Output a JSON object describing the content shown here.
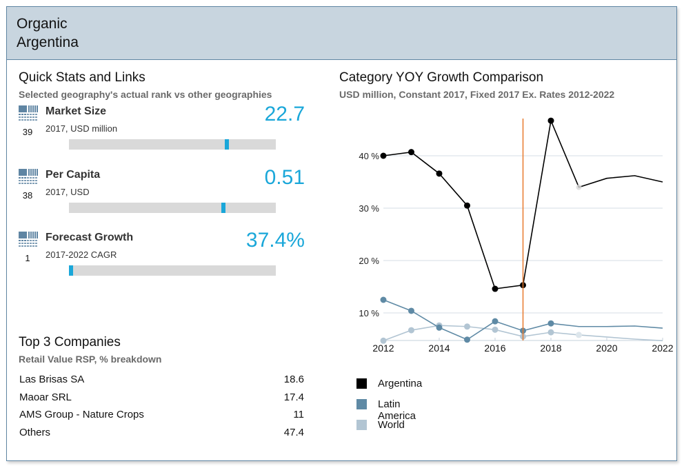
{
  "header": {
    "title_line1": "Organic",
    "title_line2": "Argentina"
  },
  "quick_stats": {
    "title": "Quick Stats and Links",
    "subtitle": "Selected geography's actual rank vs other geographies",
    "items": [
      {
        "label": "Market Size",
        "sub": "2017, USD million",
        "value": "22.7",
        "rank": "39",
        "rank_icon": "grid-rank-icon",
        "bar_position": 0.77
      },
      {
        "label": "Per Capita",
        "sub": "2017, USD",
        "value": "0.51",
        "rank": "38",
        "rank_icon": "grid-rank-icon",
        "bar_position": 0.75
      },
      {
        "label": "Forecast Growth",
        "sub": "2017-2022 CAGR",
        "value": "37.4%",
        "rank": "1",
        "rank_icon": "grid-rank-icon",
        "bar_position": 0.0
      }
    ],
    "accent_color": "#1aa7d9"
  },
  "top_companies": {
    "title": "Top 3 Companies",
    "subtitle": "Retail Value RSP, % breakdown",
    "rows": [
      {
        "name": "Las Brisas SA",
        "value": "18.6"
      },
      {
        "name": "Maoar SRL",
        "value": "17.4"
      },
      {
        "name": "AMS Group - Nature Crops",
        "value": "11"
      },
      {
        "name": "Others",
        "value": "47.4"
      }
    ]
  },
  "chart_data": {
    "type": "line",
    "title": "Category YOY Growth Comparison",
    "subtitle": "USD million, Constant 2017, Fixed 2017 Ex. Rates 2012-2022",
    "xlabel": "",
    "ylabel": "",
    "x": [
      2012,
      2013,
      2014,
      2015,
      2016,
      2017,
      2018,
      2019,
      2020,
      2021,
      2022
    ],
    "x_ticks": [
      "2012",
      "2014",
      "2016",
      "2018",
      "2020",
      "2022"
    ],
    "y_ticks": [
      "10 %",
      "20 %",
      "30 %",
      "40 %"
    ],
    "y_tick_values": [
      10,
      20,
      30,
      40
    ],
    "ylim": [
      4.7,
      48
    ],
    "xlim": [
      2012,
      2022
    ],
    "grid": true,
    "marker_year": 2017,
    "marker_color": "#e8782a",
    "legend_position": "bottom-left",
    "series": [
      {
        "name": "Argentina",
        "color": "#000000",
        "values": [
          40.0,
          40.7,
          36.6,
          30.5,
          14.6,
          15.3,
          46.7,
          34.0,
          35.7,
          36.2,
          35.0
        ],
        "marked_points": 7
      },
      {
        "name": "Latin America",
        "color": "#5f8aa5",
        "values": [
          12.5,
          10.4,
          7.2,
          4.9,
          8.4,
          6.6,
          8.0,
          7.4,
          7.4,
          7.5,
          7.1
        ],
        "marked_points": 7
      },
      {
        "name": "World",
        "color": "#b2c5d3",
        "values": [
          4.7,
          6.7,
          7.6,
          7.4,
          6.8,
          5.5,
          6.3,
          5.8,
          5.4,
          5.0,
          4.7
        ],
        "marked_points": 7
      }
    ]
  }
}
